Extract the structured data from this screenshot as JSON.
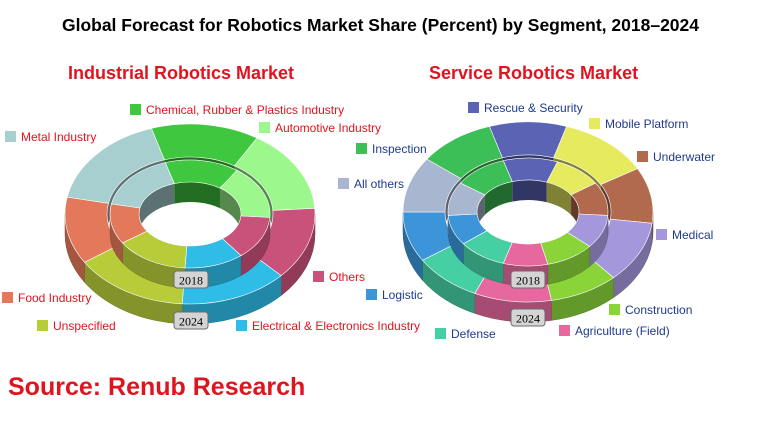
{
  "title": "Global Forecast for Robotics Market Share (Percent) by Segment, 2018–2024",
  "source": "Source: Renub Research",
  "colors": {
    "title": "#000000",
    "chart_title": "#e0141e",
    "industrial_labels": "#e0141e",
    "service_labels": "#1f3a8c"
  },
  "chart_data": [
    {
      "type": "donut",
      "title": "Industrial Robotics Market",
      "rings": [
        "2018",
        "2024"
      ],
      "series": [
        {
          "name": "Chemical, Rubber & Plastics Industry",
          "color": "#3fc73f",
          "values": [
            15,
            14
          ]
        },
        {
          "name": "Automotive Industry",
          "color": "#9cf78d",
          "values": [
            16,
            15
          ]
        },
        {
          "name": "Others",
          "color": "#c9527a",
          "values": [
            13,
            13
          ]
        },
        {
          "name": "Electrical & Electronics Industry",
          "color": "#2fbde8",
          "values": [
            12,
            14
          ]
        },
        {
          "name": "Unspecified",
          "color": "#b8cc3a",
          "values": [
            15,
            15
          ]
        },
        {
          "name": "Food Industry",
          "color": "#e3795a",
          "values": [
            12,
            12
          ]
        },
        {
          "name": "Metal Industry",
          "color": "#a7cfcf",
          "values": [
            17,
            17
          ]
        }
      ]
    },
    {
      "type": "donut",
      "title": "Service Robotics Market",
      "rings": [
        "2018",
        "2024"
      ],
      "series": [
        {
          "name": "Rescue & Security",
          "color": "#5b63b5",
          "values": [
            11,
            10
          ]
        },
        {
          "name": "Mobile Platform",
          "color": "#e6ea5e",
          "values": [
            10,
            12
          ]
        },
        {
          "name": "Underwater",
          "color": "#b26a4e",
          "values": [
            10,
            10
          ]
        },
        {
          "name": "Medical",
          "color": "#a497db",
          "values": [
            10,
            11
          ]
        },
        {
          "name": "Construction",
          "color": "#8ad43a",
          "values": [
            10,
            9
          ]
        },
        {
          "name": "Agriculture (Field)",
          "color": "#e7689e",
          "values": [
            9,
            10
          ]
        },
        {
          "name": "Defense",
          "color": "#45cfa3",
          "values": [
            10,
            9
          ]
        },
        {
          "name": "Logistic",
          "color": "#3c95d8",
          "values": [
            9,
            9
          ]
        },
        {
          "name": "All others",
          "color": "#a8b6cf",
          "values": [
            10,
            10
          ]
        },
        {
          "name": "Inspection",
          "color": "#3dbf58",
          "values": [
            11,
            10
          ]
        }
      ]
    }
  ]
}
